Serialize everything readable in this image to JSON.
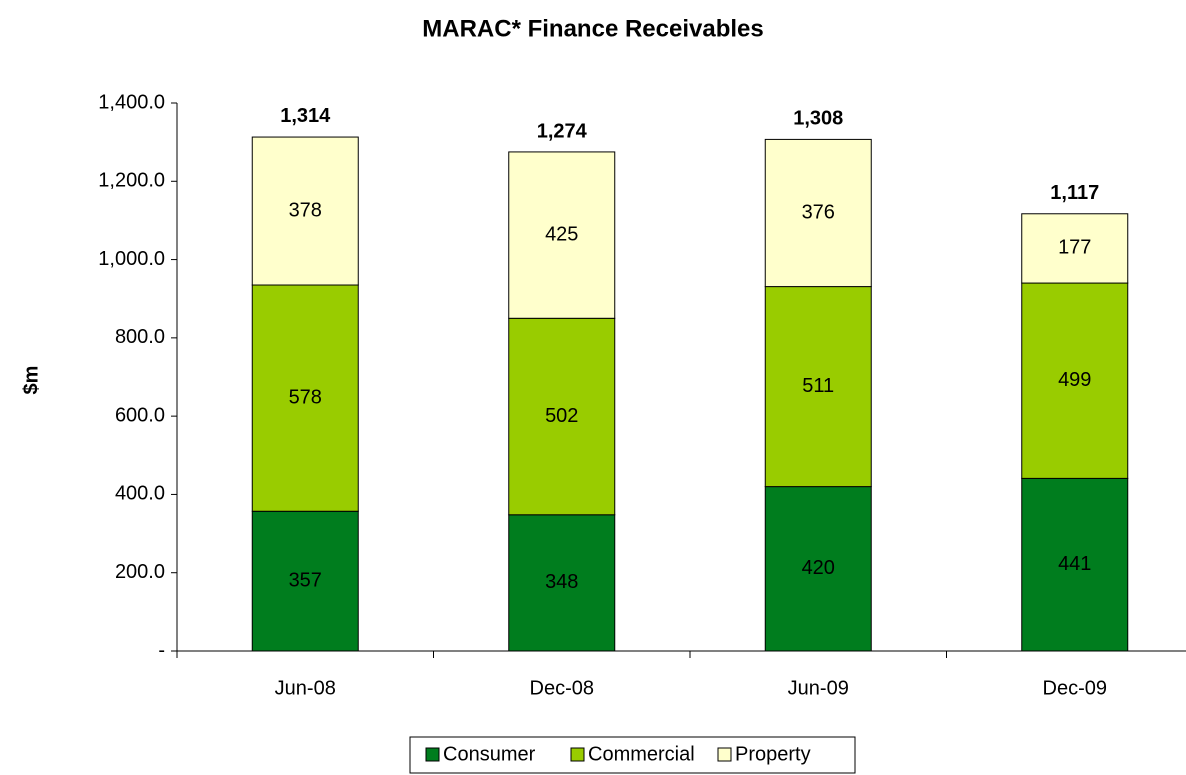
{
  "chart_data": {
    "type": "stacked_bar",
    "title": "MARAC* Finance Receivables",
    "y_label": "$m",
    "categories": [
      "Jun-08",
      "Dec-08",
      "Jun-09",
      "Dec-09"
    ],
    "series": [
      {
        "name": "Consumer",
        "color": "#007d1e",
        "values": [
          357,
          348,
          420,
          441
        ]
      },
      {
        "name": "Commercial",
        "color": "#99cc00",
        "values": [
          578,
          502,
          511,
          499
        ]
      },
      {
        "name": "Property",
        "color": "#ffffcc",
        "values": [
          378,
          425,
          376,
          177
        ]
      }
    ],
    "totals": [
      1314,
      1274,
      1308,
      1117
    ],
    "total_labels": [
      "1,314",
      "1,274",
      "1,308",
      "1,117"
    ],
    "ylim": [
      0,
      1400
    ],
    "yticks": [
      {
        "value": 0,
        "label": "-"
      },
      {
        "value": 200,
        "label": "200.0"
      },
      {
        "value": 400,
        "label": "400.0"
      },
      {
        "value": 600,
        "label": "600.0"
      },
      {
        "value": 800,
        "label": "800.0"
      },
      {
        "value": 1000,
        "label": "1,000.0"
      },
      {
        "value": 1200,
        "label": "1,200.0"
      },
      {
        "value": 1400,
        "label": "1,400.0"
      }
    ],
    "legend": "bottom",
    "grid": false
  }
}
